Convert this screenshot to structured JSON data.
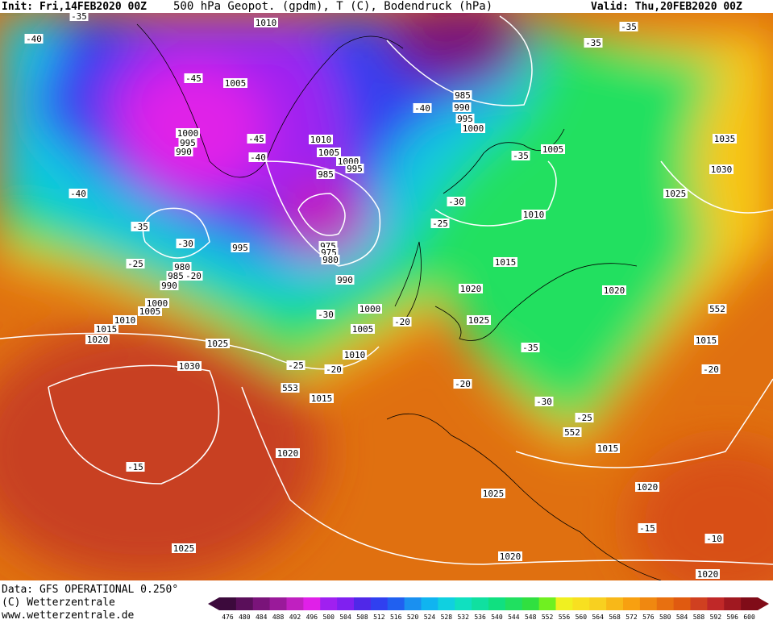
{
  "header": {
    "init": "Init: Fri,14FEB2020 00Z",
    "title": "500 hPa Geopot. (gpdm), T (C), Bodendruck (hPa)",
    "valid": "Valid: Thu,20FEB2020 00Z"
  },
  "footer": {
    "data": "Data: GFS OPERATIONAL 0.250°",
    "copyright": "(C) Wetterzentrale",
    "url": "www.wetterzentrale.de"
  },
  "colorbar": {
    "values": [
      476,
      480,
      484,
      488,
      492,
      496,
      500,
      504,
      508,
      512,
      516,
      520,
      524,
      528,
      532,
      536,
      540,
      544,
      548,
      552,
      556,
      560,
      564,
      568,
      572,
      576,
      580,
      584,
      588,
      592,
      596,
      600
    ],
    "colors": [
      "#3c0a3c",
      "#5a0f5a",
      "#7a147a",
      "#9a1a9a",
      "#c020c0",
      "#e020e8",
      "#a020f0",
      "#8020f0",
      "#5028e8",
      "#3040f0",
      "#2060f0",
      "#1a90f0",
      "#10b4f0",
      "#10d0e0",
      "#10e0c0",
      "#10e0a0",
      "#10e080",
      "#20e060",
      "#30e040",
      "#70f020",
      "#f0f020",
      "#f8e020",
      "#f8d020",
      "#f8b818",
      "#f8a010",
      "#f08810",
      "#e87010",
      "#e05a10",
      "#d04020",
      "#c02828",
      "#a01820",
      "#800c18"
    ]
  },
  "map_labels": [
    1010,
    1005,
    1000,
    995,
    990,
    -45,
    -40,
    -35,
    -45,
    -40,
    1010,
    1005,
    1000,
    995,
    985,
    975,
    975,
    980,
    995,
    990,
    980,
    985,
    990,
    -20,
    1000,
    1005,
    1010,
    1015,
    1020,
    1025,
    1030,
    -30,
    -35,
    -25,
    -40,
    985,
    990,
    995,
    1000,
    -40,
    -35,
    -35,
    1005,
    -35,
    -30,
    -25,
    1010,
    1015,
    1020,
    1020,
    1025,
    1000,
    1005,
    -30,
    -20,
    1010,
    -25,
    -20,
    553,
    1015,
    1020,
    -20,
    -35,
    -30,
    -25,
    552,
    1015,
    1020,
    1025,
    1020,
    -15,
    1025,
    -15,
    -10,
    1020,
    1015,
    -20,
    552,
    1025,
    1030,
    1035
  ]
}
